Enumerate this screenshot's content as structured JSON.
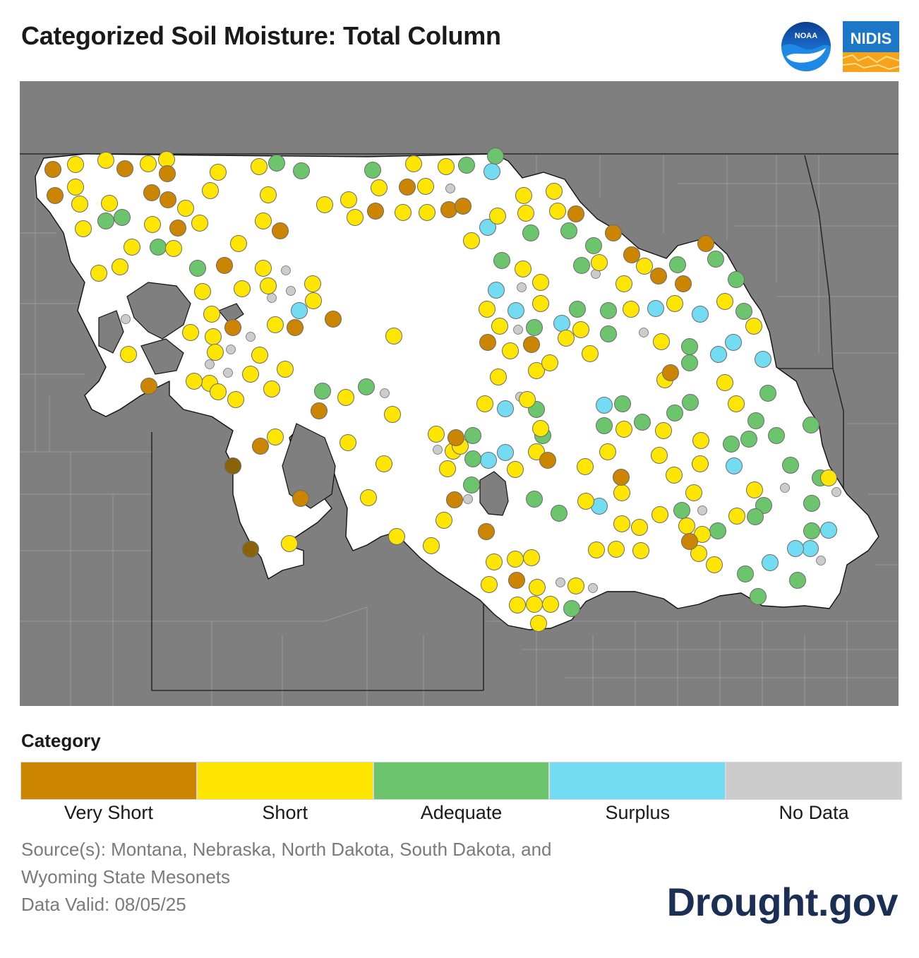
{
  "title": "Categorized Soil Moisture: Total Column",
  "logos": {
    "noaa_text": "NOAA",
    "nidis_text": "NIDIS"
  },
  "legend": {
    "title": "Category",
    "categories": [
      {
        "key": "very_short",
        "label": "Very Short",
        "color": "#cc8500"
      },
      {
        "key": "short",
        "label": "Short",
        "color": "#ffe600"
      },
      {
        "key": "adequate",
        "label": "Adequate",
        "color": "#6cc56c"
      },
      {
        "key": "surplus",
        "label": "Surplus",
        "color": "#73dcf2"
      },
      {
        "key": "no_data",
        "label": "No Data",
        "color": "#cccccc"
      }
    ]
  },
  "source_text": "Source(s): Montana, Nebraska, North Dakota, South Dakota, and Wyoming State Mesonets",
  "data_valid": "Data Valid: 08/05/25",
  "brand": "Drought.gov",
  "colors": {
    "background_region": "#7f7f7f",
    "region_fill": "#ffffff",
    "text_dark": "#1a1a1a",
    "text_muted": "#7a7a7a",
    "brand": "#1b2f55"
  },
  "stations": {
    "very_short": [
      [
        75,
        240
      ],
      [
        78,
        277
      ],
      [
        177,
        239
      ],
      [
        237,
        246
      ],
      [
        215,
        273
      ],
      [
        238,
        283
      ],
      [
        252,
        323
      ],
      [
        397,
        327
      ],
      [
        318,
        376
      ],
      [
        330,
        464
      ],
      [
        418,
        464
      ],
      [
        472,
        452
      ],
      [
        577,
        265
      ],
      [
        532,
        299
      ],
      [
        636,
        297
      ],
      [
        656,
        292
      ],
      [
        816,
        303
      ],
      [
        869,
        330
      ],
      [
        895,
        361
      ],
      [
        933,
        391
      ],
      [
        968,
        402
      ],
      [
        1000,
        345
      ],
      [
        691,
        485
      ],
      [
        753,
        488
      ],
      [
        950,
        528
      ],
      [
        452,
        582
      ],
      [
        369,
        632
      ],
      [
        211,
        547
      ],
      [
        426,
        706
      ],
      [
        646,
        620
      ],
      [
        776,
        652
      ],
      [
        880,
        676
      ],
      [
        644,
        708
      ],
      [
        689,
        753
      ],
      [
        977,
        767
      ],
      [
        732,
        822
      ]
    ],
    "short": [
      [
        107,
        233
      ],
      [
        150,
        227
      ],
      [
        210,
        232
      ],
      [
        236,
        226
      ],
      [
        309,
        244
      ],
      [
        367,
        236
      ],
      [
        107,
        265
      ],
      [
        113,
        289
      ],
      [
        155,
        288
      ],
      [
        118,
        324
      ],
      [
        216,
        318
      ],
      [
        263,
        295
      ],
      [
        283,
        316
      ],
      [
        298,
        270
      ],
      [
        380,
        276
      ],
      [
        460,
        290
      ],
      [
        494,
        283
      ],
      [
        503,
        308
      ],
      [
        537,
        266
      ],
      [
        571,
        301
      ],
      [
        586,
        232
      ],
      [
        603,
        264
      ],
      [
        605,
        301
      ],
      [
        632,
        236
      ],
      [
        742,
        277
      ],
      [
        785,
        271
      ],
      [
        790,
        299
      ],
      [
        745,
        302
      ],
      [
        705,
        306
      ],
      [
        668,
        341
      ],
      [
        373,
        313
      ],
      [
        338,
        345
      ],
      [
        187,
        350
      ],
      [
        170,
        378
      ],
      [
        140,
        387
      ],
      [
        246,
        352
      ],
      [
        287,
        413
      ],
      [
        300,
        445
      ],
      [
        302,
        477
      ],
      [
        343,
        409
      ],
      [
        373,
        380
      ],
      [
        380,
        405
      ],
      [
        443,
        402
      ],
      [
        444,
        426
      ],
      [
        390,
        460
      ],
      [
        182,
        502
      ],
      [
        270,
        471
      ],
      [
        305,
        499
      ],
      [
        368,
        503
      ],
      [
        404,
        523
      ],
      [
        355,
        530
      ],
      [
        297,
        543
      ],
      [
        275,
        540
      ],
      [
        309,
        555
      ],
      [
        334,
        566
      ],
      [
        385,
        551
      ],
      [
        490,
        563
      ],
      [
        556,
        587
      ],
      [
        558,
        476
      ],
      [
        741,
        381
      ],
      [
        766,
        400
      ],
      [
        766,
        430
      ],
      [
        690,
        438
      ],
      [
        708,
        462
      ],
      [
        723,
        497
      ],
      [
        760,
        525
      ],
      [
        779,
        514
      ],
      [
        802,
        479
      ],
      [
        823,
        467
      ],
      [
        836,
        501
      ],
      [
        849,
        372
      ],
      [
        884,
        402
      ],
      [
        894,
        438
      ],
      [
        913,
        377
      ],
      [
        937,
        484
      ],
      [
        956,
        430
      ],
      [
        1027,
        427
      ],
      [
        1068,
        462
      ],
      [
        706,
        534
      ],
      [
        687,
        572
      ],
      [
        747,
        566
      ],
      [
        760,
        640
      ],
      [
        730,
        665
      ],
      [
        766,
        607
      ],
      [
        642,
        639
      ],
      [
        634,
        664
      ],
      [
        618,
        615
      ],
      [
        652,
        632
      ],
      [
        493,
        627
      ],
      [
        544,
        657
      ],
      [
        522,
        705
      ],
      [
        629,
        737
      ],
      [
        611,
        773
      ],
      [
        700,
        796
      ],
      [
        730,
        792
      ],
      [
        753,
        790
      ],
      [
        693,
        828
      ],
      [
        761,
        832
      ],
      [
        733,
        857
      ],
      [
        757,
        856
      ],
      [
        780,
        856
      ],
      [
        763,
        883
      ],
      [
        816,
        830
      ],
      [
        829,
        661
      ],
      [
        861,
        640
      ],
      [
        884,
        608
      ],
      [
        942,
        538
      ],
      [
        940,
        610
      ],
      [
        934,
        645
      ],
      [
        993,
        624
      ],
      [
        992,
        657
      ],
      [
        955,
        673
      ],
      [
        983,
        698
      ],
      [
        1069,
        694
      ],
      [
        1044,
        731
      ],
      [
        935,
        729
      ],
      [
        881,
        698
      ],
      [
        830,
        710
      ],
      [
        881,
        742
      ],
      [
        906,
        747
      ],
      [
        973,
        745
      ],
      [
        995,
        757
      ],
      [
        990,
        784
      ],
      [
        1012,
        800
      ],
      [
        845,
        779
      ],
      [
        873,
        778
      ],
      [
        908,
        780
      ],
      [
        1027,
        542
      ],
      [
        1043,
        572
      ],
      [
        1174,
        677
      ],
      [
        410,
        770
      ],
      [
        390,
        619
      ],
      [
        562,
        760
      ]
    ],
    "adequate": [
      [
        392,
        231
      ],
      [
        427,
        242
      ],
      [
        528,
        241
      ],
      [
        661,
        234
      ],
      [
        702,
        221
      ],
      [
        150,
        313
      ],
      [
        173,
        308
      ],
      [
        224,
        350
      ],
      [
        280,
        380
      ],
      [
        752,
        330
      ],
      [
        806,
        327
      ],
      [
        841,
        348
      ],
      [
        824,
        376
      ],
      [
        711,
        369
      ],
      [
        960,
        375
      ],
      [
        1014,
        367
      ],
      [
        1043,
        396
      ],
      [
        1054,
        441
      ],
      [
        862,
        440
      ],
      [
        862,
        473
      ],
      [
        818,
        438
      ],
      [
        757,
        464
      ],
      [
        977,
        491
      ],
      [
        977,
        514
      ],
      [
        1088,
        557
      ],
      [
        978,
        570
      ],
      [
        956,
        585
      ],
      [
        910,
        598
      ],
      [
        882,
        572
      ],
      [
        856,
        603
      ],
      [
        1071,
        596
      ],
      [
        1036,
        629
      ],
      [
        1061,
        622
      ],
      [
        1100,
        617
      ],
      [
        1149,
        602
      ],
      [
        1120,
        659
      ],
      [
        1162,
        677
      ],
      [
        1150,
        713
      ],
      [
        1082,
        716
      ],
      [
        1070,
        732
      ],
      [
        1150,
        752
      ],
      [
        1017,
        752
      ],
      [
        1056,
        813
      ],
      [
        1130,
        822
      ],
      [
        1074,
        845
      ],
      [
        966,
        723
      ],
      [
        792,
        727
      ],
      [
        757,
        707
      ],
      [
        769,
        617
      ],
      [
        760,
        580
      ],
      [
        670,
        617
      ],
      [
        670,
        650
      ],
      [
        668,
        687
      ],
      [
        519,
        548
      ],
      [
        457,
        554
      ],
      [
        810,
        862
      ]
    ],
    "surplus": [
      [
        697,
        243
      ],
      [
        691,
        322
      ],
      [
        703,
        411
      ],
      [
        731,
        440
      ],
      [
        796,
        458
      ],
      [
        929,
        437
      ],
      [
        992,
        445
      ],
      [
        1039,
        485
      ],
      [
        1018,
        502
      ],
      [
        1081,
        509
      ],
      [
        716,
        579
      ],
      [
        856,
        574
      ],
      [
        716,
        641
      ],
      [
        692,
        652
      ],
      [
        1040,
        660
      ],
      [
        849,
        717
      ],
      [
        1174,
        751
      ],
      [
        1148,
        777
      ],
      [
        1127,
        777
      ],
      [
        1091,
        797
      ],
      [
        424,
        440
      ]
    ],
    "no_data": [
      [
        638,
        267
      ],
      [
        405,
        383
      ],
      [
        412,
        412
      ],
      [
        385,
        422
      ],
      [
        739,
        407
      ],
      [
        734,
        467
      ],
      [
        355,
        477
      ],
      [
        327,
        495
      ],
      [
        297,
        516
      ],
      [
        323,
        528
      ],
      [
        545,
        557
      ],
      [
        737,
        562
      ],
      [
        620,
        637
      ],
      [
        663,
        707
      ],
      [
        912,
        471
      ],
      [
        844,
        388
      ],
      [
        1112,
        691
      ],
      [
        1185,
        697
      ],
      [
        995,
        723
      ],
      [
        1163,
        794
      ],
      [
        794,
        825
      ],
      [
        840,
        833
      ],
      [
        178,
        452
      ]
    ],
    "very_short_dim": [
      [
        330,
        660
      ],
      [
        355,
        778
      ]
    ]
  }
}
